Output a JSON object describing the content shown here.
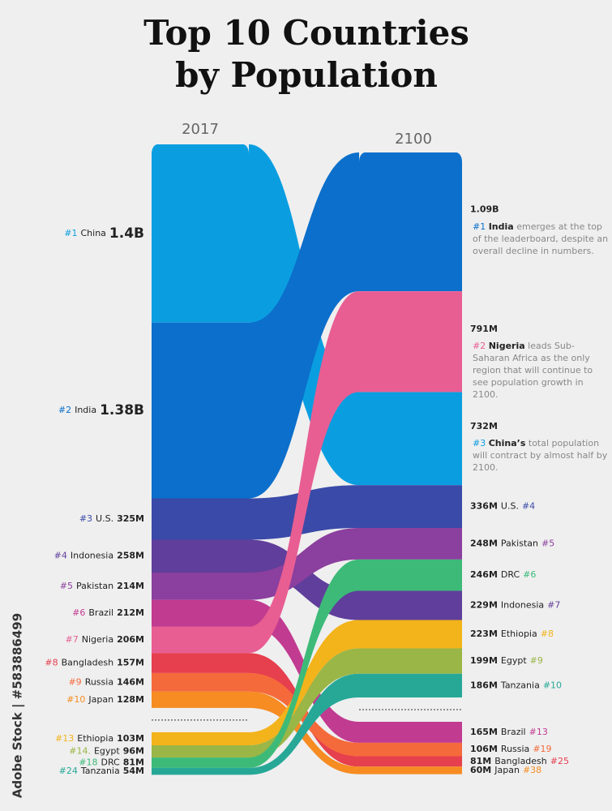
{
  "chart_data": {
    "type": "rank-flow",
    "title_lines": [
      "Top 10 Countries",
      "by Population"
    ],
    "columns": [
      "2017",
      "2100"
    ],
    "watermark": "Adobe Stock | #583886499",
    "series": [
      {
        "name": "China",
        "color": "#0a9ee0",
        "rank_2017": "#1",
        "value_2017": 1400,
        "value_label_2017": "1.4B",
        "rank_2100": "#3",
        "value_2100": 732,
        "value_label_2100": "732M"
      },
      {
        "name": "India",
        "color": "#0b6fcb",
        "rank_2017": "#2",
        "value_2017": 1380,
        "value_label_2017": "1.38B",
        "rank_2100": "#1",
        "value_2100": 1090,
        "value_label_2100": "1.09B"
      },
      {
        "name": "U.S.",
        "color": "#3a4aa8",
        "rank_2017": "#3",
        "value_2017": 325,
        "value_label_2017": "325M",
        "rank_2100": "#4",
        "value_2100": 336,
        "value_label_2100": "336M"
      },
      {
        "name": "Indonesia",
        "color": "#603e9b",
        "rank_2017": "#4",
        "value_2017": 258,
        "value_label_2017": "258M",
        "rank_2100": "#7",
        "value_2100": 229,
        "value_label_2100": "229M"
      },
      {
        "name": "Pakistan",
        "color": "#8b3f9e",
        "rank_2017": "#5",
        "value_2017": 214,
        "value_label_2017": "214M",
        "rank_2100": "#5",
        "value_2100": 248,
        "value_label_2100": "248M"
      },
      {
        "name": "Brazil",
        "color": "#c13b91",
        "rank_2017": "#6",
        "value_2017": 212,
        "value_label_2017": "212M",
        "rank_2100": "#13",
        "value_2100": 165,
        "value_label_2100": "165M"
      },
      {
        "name": "Nigeria",
        "color": "#e85e92",
        "rank_2017": "#7",
        "value_2017": 206,
        "value_label_2017": "206M",
        "rank_2100": "#2",
        "value_2100": 791,
        "value_label_2100": "791M"
      },
      {
        "name": "Bangladesh",
        "color": "#e63f4e",
        "rank_2017": "#8",
        "value_2017": 157,
        "value_label_2017": "157M",
        "rank_2100": "#25",
        "value_2100": 81,
        "value_label_2100": "81M"
      },
      {
        "name": "Russia",
        "color": "#f56a3b",
        "rank_2017": "#9",
        "value_2017": 146,
        "value_label_2017": "146M",
        "rank_2100": "#19",
        "value_2100": 106,
        "value_label_2100": "106M"
      },
      {
        "name": "Japan",
        "color": "#f68c22",
        "rank_2017": "#10",
        "value_2017": 128,
        "value_label_2017": "128M",
        "rank_2100": "#38",
        "value_2100": 60,
        "value_label_2100": "60M"
      },
      {
        "name": "Ethiopia",
        "color": "#f3b31b",
        "rank_2017": "#13",
        "value_2017": 103,
        "value_label_2017": "103M",
        "rank_2100": "#8",
        "value_2100": 223,
        "value_label_2100": "223M"
      },
      {
        "name": "Egypt",
        "color": "#9ab646",
        "rank_2017": "#14.",
        "value_2017": 96,
        "value_label_2017": "96M",
        "rank_2100": "#9",
        "value_2100": 199,
        "value_label_2100": "199M"
      },
      {
        "name": "DRC",
        "color": "#3dba78",
        "rank_2017": "#18",
        "value_2017": 81,
        "value_label_2017": "81M",
        "rank_2100": "#6",
        "value_2100": 246,
        "value_label_2100": "246M"
      },
      {
        "name": "Tanzania",
        "color": "#27a897",
        "rank_2017": "#24",
        "value_2017": 54,
        "value_label_2017": "54M",
        "rank_2100": "#10",
        "value_2100": 186,
        "value_label_2100": "186M"
      }
    ],
    "notes": [
      {
        "series": 1,
        "rank": "#1",
        "name": "India",
        "text": "emerges at the top of the leaderboard, despite an overall decline in numbers."
      },
      {
        "series": 6,
        "rank": "#2",
        "name": "Nigeria",
        "text": "leads Sub-Saharan Africa as the only region that will continue to see population growth in 2100."
      },
      {
        "series": 0,
        "rank": "#3",
        "name": "China’s",
        "text": "total population will contract by almost half by 2100."
      }
    ]
  }
}
